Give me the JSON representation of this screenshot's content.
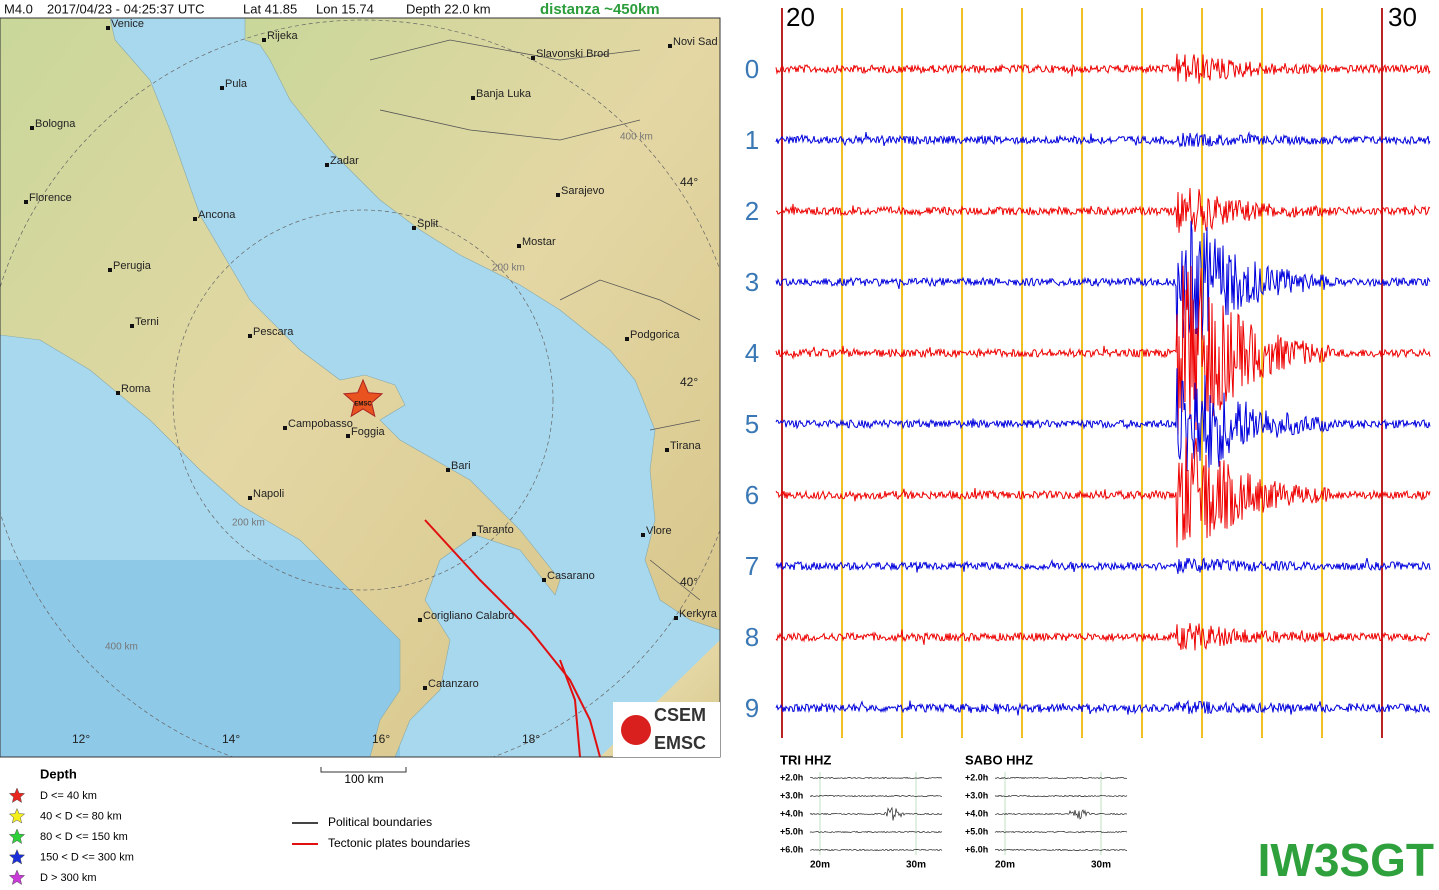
{
  "header": {
    "magnitude": "M4.0",
    "time": "2017/04/23 - 04:25:37 UTC",
    "lat": "Lat 41.85",
    "lon": "Lon 15.74",
    "depth": "Depth 22.0 km",
    "distance": "distanza ~450km"
  },
  "map": {
    "cities": [
      "Venice",
      "Rijeka",
      "Slavonski Brod",
      "Novi Sad",
      "Pula",
      "Banja Luka",
      "Bologna",
      "Zadar",
      "Sarajevo",
      "Florence",
      "Ancona",
      "Split",
      "Mostar",
      "Perugia",
      "Pescara",
      "Podgorica",
      "Terni",
      "Roma",
      "Campobasso",
      "Foggia",
      "Bari",
      "Tirana",
      "Napoli",
      "Taranto",
      "Vlore",
      "Casarano",
      "Corigliano Calabro",
      "Kerkyra",
      "Catanzaro"
    ],
    "ring_labels": [
      "400 km",
      "200 km",
      "200 km",
      "400 km"
    ],
    "lat_labels": [
      "44°",
      "42°",
      "40°"
    ],
    "lon_labels": [
      "12°",
      "14°",
      "16°",
      "18°"
    ],
    "epicenter_label": "EMSC",
    "scale": "100 km",
    "logo": [
      "CSEM",
      "EMSC"
    ]
  },
  "depth_legend": {
    "title": "Depth",
    "entries": [
      {
        "label": "D <= 40 km",
        "color": "#e8261f"
      },
      {
        "label": "40 < D <= 80 km",
        "color": "#f4ee1c"
      },
      {
        "label": "80 < D <= 150 km",
        "color": "#2fd13a"
      },
      {
        "label": "150 < D <= 300 km",
        "color": "#1b2fd8"
      },
      {
        "label": "D > 300 km",
        "color": "#c93ad8"
      }
    ]
  },
  "boundary_legend": [
    {
      "label": "Political boundaries",
      "color": "#444444"
    },
    {
      "label": "Tectonic plates boundaries",
      "color": "#e01010"
    }
  ],
  "seismogram": {
    "minute_labels": [
      "20",
      "30"
    ],
    "rows": [
      {
        "label": "0",
        "color": "#ee0000"
      },
      {
        "label": "1",
        "color": "#0000dd"
      },
      {
        "label": "2",
        "color": "#ee0000"
      },
      {
        "label": "3",
        "color": "#0000dd"
      },
      {
        "label": "4",
        "color": "#ee0000"
      },
      {
        "label": "5",
        "color": "#0000dd"
      },
      {
        "label": "6",
        "color": "#ee0000"
      },
      {
        "label": "7",
        "color": "#0000dd"
      },
      {
        "label": "8",
        "color": "#ee0000"
      },
      {
        "label": "9",
        "color": "#0000dd"
      }
    ]
  },
  "station_panels": [
    {
      "name": "TRI HHZ",
      "hours": [
        "+2.0h",
        "+3.0h",
        "+4.0h",
        "+5.0h",
        "+6.0h"
      ],
      "minutes": [
        "20m",
        "30m"
      ]
    },
    {
      "name": "SABO HHZ",
      "hours": [
        "+2.0h",
        "+3.0h",
        "+4.0h",
        "+5.0h",
        "+6.0h"
      ],
      "minutes": [
        "20m",
        "30m"
      ]
    }
  ],
  "callsign": "IW3SGT"
}
